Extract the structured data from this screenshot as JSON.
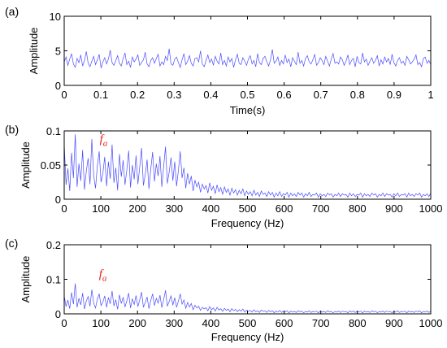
{
  "colors": {
    "signal": "#4b4bff",
    "annotation": "#e8201a",
    "axis": "#000000"
  },
  "chart_data": [
    {
      "type": "line",
      "panel_tag": "(a)",
      "xlabel": "Time(s)",
      "ylabel": "Amplitude",
      "xlim": [
        0,
        1
      ],
      "ylim": [
        0,
        10
      ],
      "xticks": [
        0,
        0.1,
        0.2,
        0.3,
        0.4,
        0.5,
        0.6,
        0.7,
        0.8,
        0.9,
        1
      ],
      "xtick_labels": [
        "0",
        "0.1",
        "0.2",
        "0.3",
        "0.4",
        "0.5",
        "0.6",
        "0.7",
        "0.8",
        "0.9",
        "1"
      ],
      "yticks": [
        0,
        5,
        10
      ],
      "ytick_labels": [
        "0",
        "5",
        "10"
      ],
      "grid": false,
      "series": [
        {
          "x_start": 0,
          "x_end": 1,
          "values": [
            3.4,
            4.1,
            2.9,
            3.8,
            4.6,
            3.1,
            2.6,
            3.9,
            3.3,
            4.4,
            2.8,
            3.6,
            4.9,
            3.2,
            2.7,
            3.5,
            4.2,
            3.0,
            3.7,
            4.5,
            2.5,
            3.4,
            4.0,
            3.1,
            3.8,
            5.1,
            3.3,
            2.9,
            3.6,
            4.3,
            3.2,
            2.8,
            3.9,
            4.7,
            3.0,
            3.5,
            2.6,
            4.1,
            3.4,
            3.8,
            4.4,
            2.9,
            3.3,
            3.7,
            4.8,
            3.1,
            2.7,
            3.6,
            4.0,
            3.2,
            3.9,
            4.5,
            2.8,
            3.4,
            3.0,
            4.2,
            3.6,
            5.3,
            3.1,
            2.9,
            3.8,
            4.1,
            3.3,
            2.6,
            3.7,
            4.6,
            3.0,
            3.5,
            4.3,
            3.2,
            2.8,
            3.9,
            4.0,
            3.4,
            5.0,
            3.1,
            2.7,
            3.6,
            4.4,
            3.3,
            3.8,
            2.9,
            4.2,
            3.5,
            3.1,
            4.7,
            3.0,
            3.6,
            2.8,
            4.1,
            3.4,
            3.9,
            2.6,
            3.7,
            4.5,
            3.2,
            3.0,
            4.0,
            3.5,
            2.9,
            3.8,
            4.3,
            3.1,
            3.6,
            2.7,
            4.6,
            3.3,
            3.0,
            3.9,
            4.2,
            3.4,
            2.8,
            3.7,
            5.2,
            3.2,
            3.5,
            4.1,
            2.9,
            3.6,
            3.1,
            4.4,
            3.3,
            3.8,
            2.7,
            4.0,
            3.5,
            3.0,
            4.8,
            3.2,
            3.6,
            2.8,
            3.9,
            4.3,
            3.4,
            3.1,
            3.7,
            4.5,
            2.9,
            3.3,
            4.0,
            3.6,
            3.0,
            4.2,
            3.5,
            2.8,
            3.8,
            4.6,
            3.2,
            3.4,
            3.1,
            4.1,
            3.7,
            2.9,
            3.5,
            4.4,
            3.0,
            3.6,
            3.9,
            2.7,
            4.2,
            3.3,
            3.1,
            4.7,
            3.4,
            3.8,
            2.9,
            3.5,
            4.0,
            3.2,
            3.6,
            4.3,
            2.8,
            3.7,
            3.1,
            4.1,
            3.4,
            3.9,
            3.0,
            4.5,
            3.3,
            2.8,
            3.6,
            4.0,
            3.2,
            3.5,
            2.9,
            4.2,
            3.7,
            3.1,
            3.4,
            3.8,
            4.4,
            3.0,
            3.3,
            2.7,
            3.9,
            4.1,
            3.2,
            3.6,
            3.0
          ]
        }
      ]
    },
    {
      "type": "line",
      "panel_tag": "(b)",
      "xlabel": "Frequency (Hz)",
      "ylabel": "Amplitude",
      "xlim": [
        0,
        1000
      ],
      "ylim": [
        0,
        0.1
      ],
      "xticks": [
        0,
        100,
        200,
        300,
        400,
        500,
        600,
        700,
        800,
        900,
        1000
      ],
      "xtick_labels": [
        "0",
        "100",
        "200",
        "300",
        "400",
        "500",
        "600",
        "700",
        "800",
        "900",
        "1000"
      ],
      "yticks": [
        0,
        0.05,
        0.1
      ],
      "ytick_labels": [
        "0",
        "0.05",
        "0.1"
      ],
      "grid": false,
      "annotation": {
        "text": "f",
        "subscript": "a",
        "x": 110,
        "y": 0.083
      },
      "series": [
        {
          "x_start": 0,
          "x_end": 1000,
          "values": [
            0.082,
            0.021,
            0.045,
            0.012,
            0.068,
            0.031,
            0.095,
            0.018,
            0.052,
            0.027,
            0.072,
            0.014,
            0.041,
            0.06,
            0.022,
            0.088,
            0.035,
            0.016,
            0.049,
            0.07,
            0.025,
            0.038,
            0.062,
            0.019,
            0.055,
            0.03,
            0.08,
            0.024,
            0.046,
            0.013,
            0.066,
            0.033,
            0.057,
            0.021,
            0.043,
            0.071,
            0.017,
            0.05,
            0.029,
            0.064,
            0.022,
            0.047,
            0.075,
            0.02,
            0.036,
            0.058,
            0.015,
            0.044,
            0.069,
            0.026,
            0.052,
            0.034,
            0.063,
            0.018,
            0.048,
            0.077,
            0.023,
            0.04,
            0.061,
            0.027,
            0.055,
            0.019,
            0.042,
            0.07,
            0.031,
            0.046,
            0.016,
            0.038,
            0.022,
            0.034,
            0.012,
            0.028,
            0.018,
            0.025,
            0.01,
            0.022,
            0.015,
            0.02,
            0.009,
            0.024,
            0.013,
            0.019,
            0.008,
            0.021,
            0.011,
            0.017,
            0.007,
            0.018,
            0.01,
            0.015,
            0.006,
            0.016,
            0.009,
            0.014,
            0.006,
            0.013,
            0.008,
            0.015,
            0.005,
            0.012,
            0.007,
            0.011,
            0.005,
            0.013,
            0.006,
            0.01,
            0.004,
            0.012,
            0.007,
            0.009,
            0.004,
            0.011,
            0.006,
            0.01,
            0.003,
            0.009,
            0.005,
            0.011,
            0.004,
            0.008,
            0.006,
            0.01,
            0.003,
            0.009,
            0.005,
            0.008,
            0.004,
            0.01,
            0.006,
            0.009,
            0.003,
            0.008,
            0.005,
            0.01,
            0.004,
            0.007,
            0.006,
            0.009,
            0.003,
            0.008,
            0.005,
            0.007,
            0.004,
            0.009,
            0.006,
            0.008,
            0.003,
            0.007,
            0.005,
            0.009,
            0.004,
            0.008,
            0.006,
            0.007,
            0.003,
            0.009,
            0.005,
            0.008,
            0.004,
            0.007,
            0.006,
            0.009,
            0.003,
            0.008,
            0.005,
            0.007,
            0.004,
            0.009,
            0.006,
            0.008,
            0.003,
            0.007,
            0.005,
            0.009,
            0.004,
            0.008,
            0.006,
            0.007,
            0.003,
            0.008,
            0.005,
            0.009,
            0.004,
            0.007,
            0.006,
            0.008,
            0.003,
            0.009,
            0.005,
            0.007,
            0.004,
            0.008,
            0.006,
            0.009,
            0.003,
            0.007,
            0.005,
            0.008,
            0.004,
            0.009
          ]
        }
      ]
    },
    {
      "type": "line",
      "panel_tag": "(c)",
      "xlabel": "Frequency (Hz)",
      "ylabel": "Amplitude",
      "xlim": [
        0,
        1000
      ],
      "ylim": [
        0,
        0.2
      ],
      "xticks": [
        0,
        100,
        200,
        300,
        400,
        500,
        600,
        700,
        800,
        900,
        1000
      ],
      "xtick_labels": [
        "0",
        "100",
        "200",
        "300",
        "400",
        "500",
        "600",
        "700",
        "800",
        "900",
        "1000"
      ],
      "yticks": [
        0,
        0.1,
        0.2
      ],
      "ytick_labels": [
        "0",
        "0.1",
        "0.2"
      ],
      "grid": false,
      "annotation": {
        "text": "f",
        "subscript": "a",
        "x": 108,
        "y": 0.105
      },
      "series": [
        {
          "x_start": 0,
          "x_end": 1000,
          "values": [
            0.052,
            0.021,
            0.04,
            0.015,
            0.062,
            0.028,
            0.088,
            0.019,
            0.045,
            0.026,
            0.06,
            0.014,
            0.037,
            0.05,
            0.022,
            0.07,
            0.031,
            0.017,
            0.043,
            0.058,
            0.024,
            0.034,
            0.052,
            0.019,
            0.047,
            0.029,
            0.066,
            0.023,
            0.041,
            0.013,
            0.055,
            0.03,
            0.048,
            0.02,
            0.038,
            0.06,
            0.017,
            0.044,
            0.027,
            0.053,
            0.021,
            0.04,
            0.063,
            0.019,
            0.033,
            0.049,
            0.015,
            0.039,
            0.058,
            0.024,
            0.045,
            0.031,
            0.054,
            0.018,
            0.041,
            0.068,
            0.022,
            0.036,
            0.052,
            0.025,
            0.047,
            0.019,
            0.037,
            0.058,
            0.028,
            0.04,
            0.016,
            0.033,
            0.02,
            0.03,
            0.012,
            0.025,
            0.017,
            0.022,
            0.01,
            0.019,
            0.014,
            0.018,
            0.009,
            0.021,
            0.012,
            0.017,
            0.008,
            0.019,
            0.011,
            0.015,
            0.007,
            0.016,
            0.01,
            0.014,
            0.006,
            0.015,
            0.009,
            0.013,
            0.006,
            0.012,
            0.008,
            0.014,
            0.005,
            0.011,
            0.007,
            0.01,
            0.005,
            0.012,
            0.006,
            0.009,
            0.004,
            0.011,
            0.007,
            0.009,
            0.004,
            0.01,
            0.006,
            0.009,
            0.003,
            0.008,
            0.005,
            0.01,
            0.004,
            0.008,
            0.006,
            0.009,
            0.003,
            0.008,
            0.005,
            0.007,
            0.004,
            0.009,
            0.006,
            0.008,
            0.003,
            0.007,
            0.005,
            0.009,
            0.004,
            0.007,
            0.006,
            0.008,
            0.003,
            0.008,
            0.005,
            0.007,
            0.004,
            0.009,
            0.006,
            0.007,
            0.003,
            0.007,
            0.005,
            0.008,
            0.004,
            0.008,
            0.006,
            0.007,
            0.003,
            0.009,
            0.005,
            0.008,
            0.004,
            0.007,
            0.006,
            0.008,
            0.003,
            0.008,
            0.005,
            0.007,
            0.004,
            0.009,
            0.006,
            0.008,
            0.003,
            0.007,
            0.005,
            0.008,
            0.004,
            0.008,
            0.006,
            0.007,
            0.003,
            0.008,
            0.005,
            0.009,
            0.004,
            0.007,
            0.006,
            0.008,
            0.003,
            0.008,
            0.005,
            0.007,
            0.004,
            0.008,
            0.006,
            0.009,
            0.003,
            0.007,
            0.005,
            0.008,
            0.004,
            0.008
          ]
        }
      ]
    }
  ]
}
